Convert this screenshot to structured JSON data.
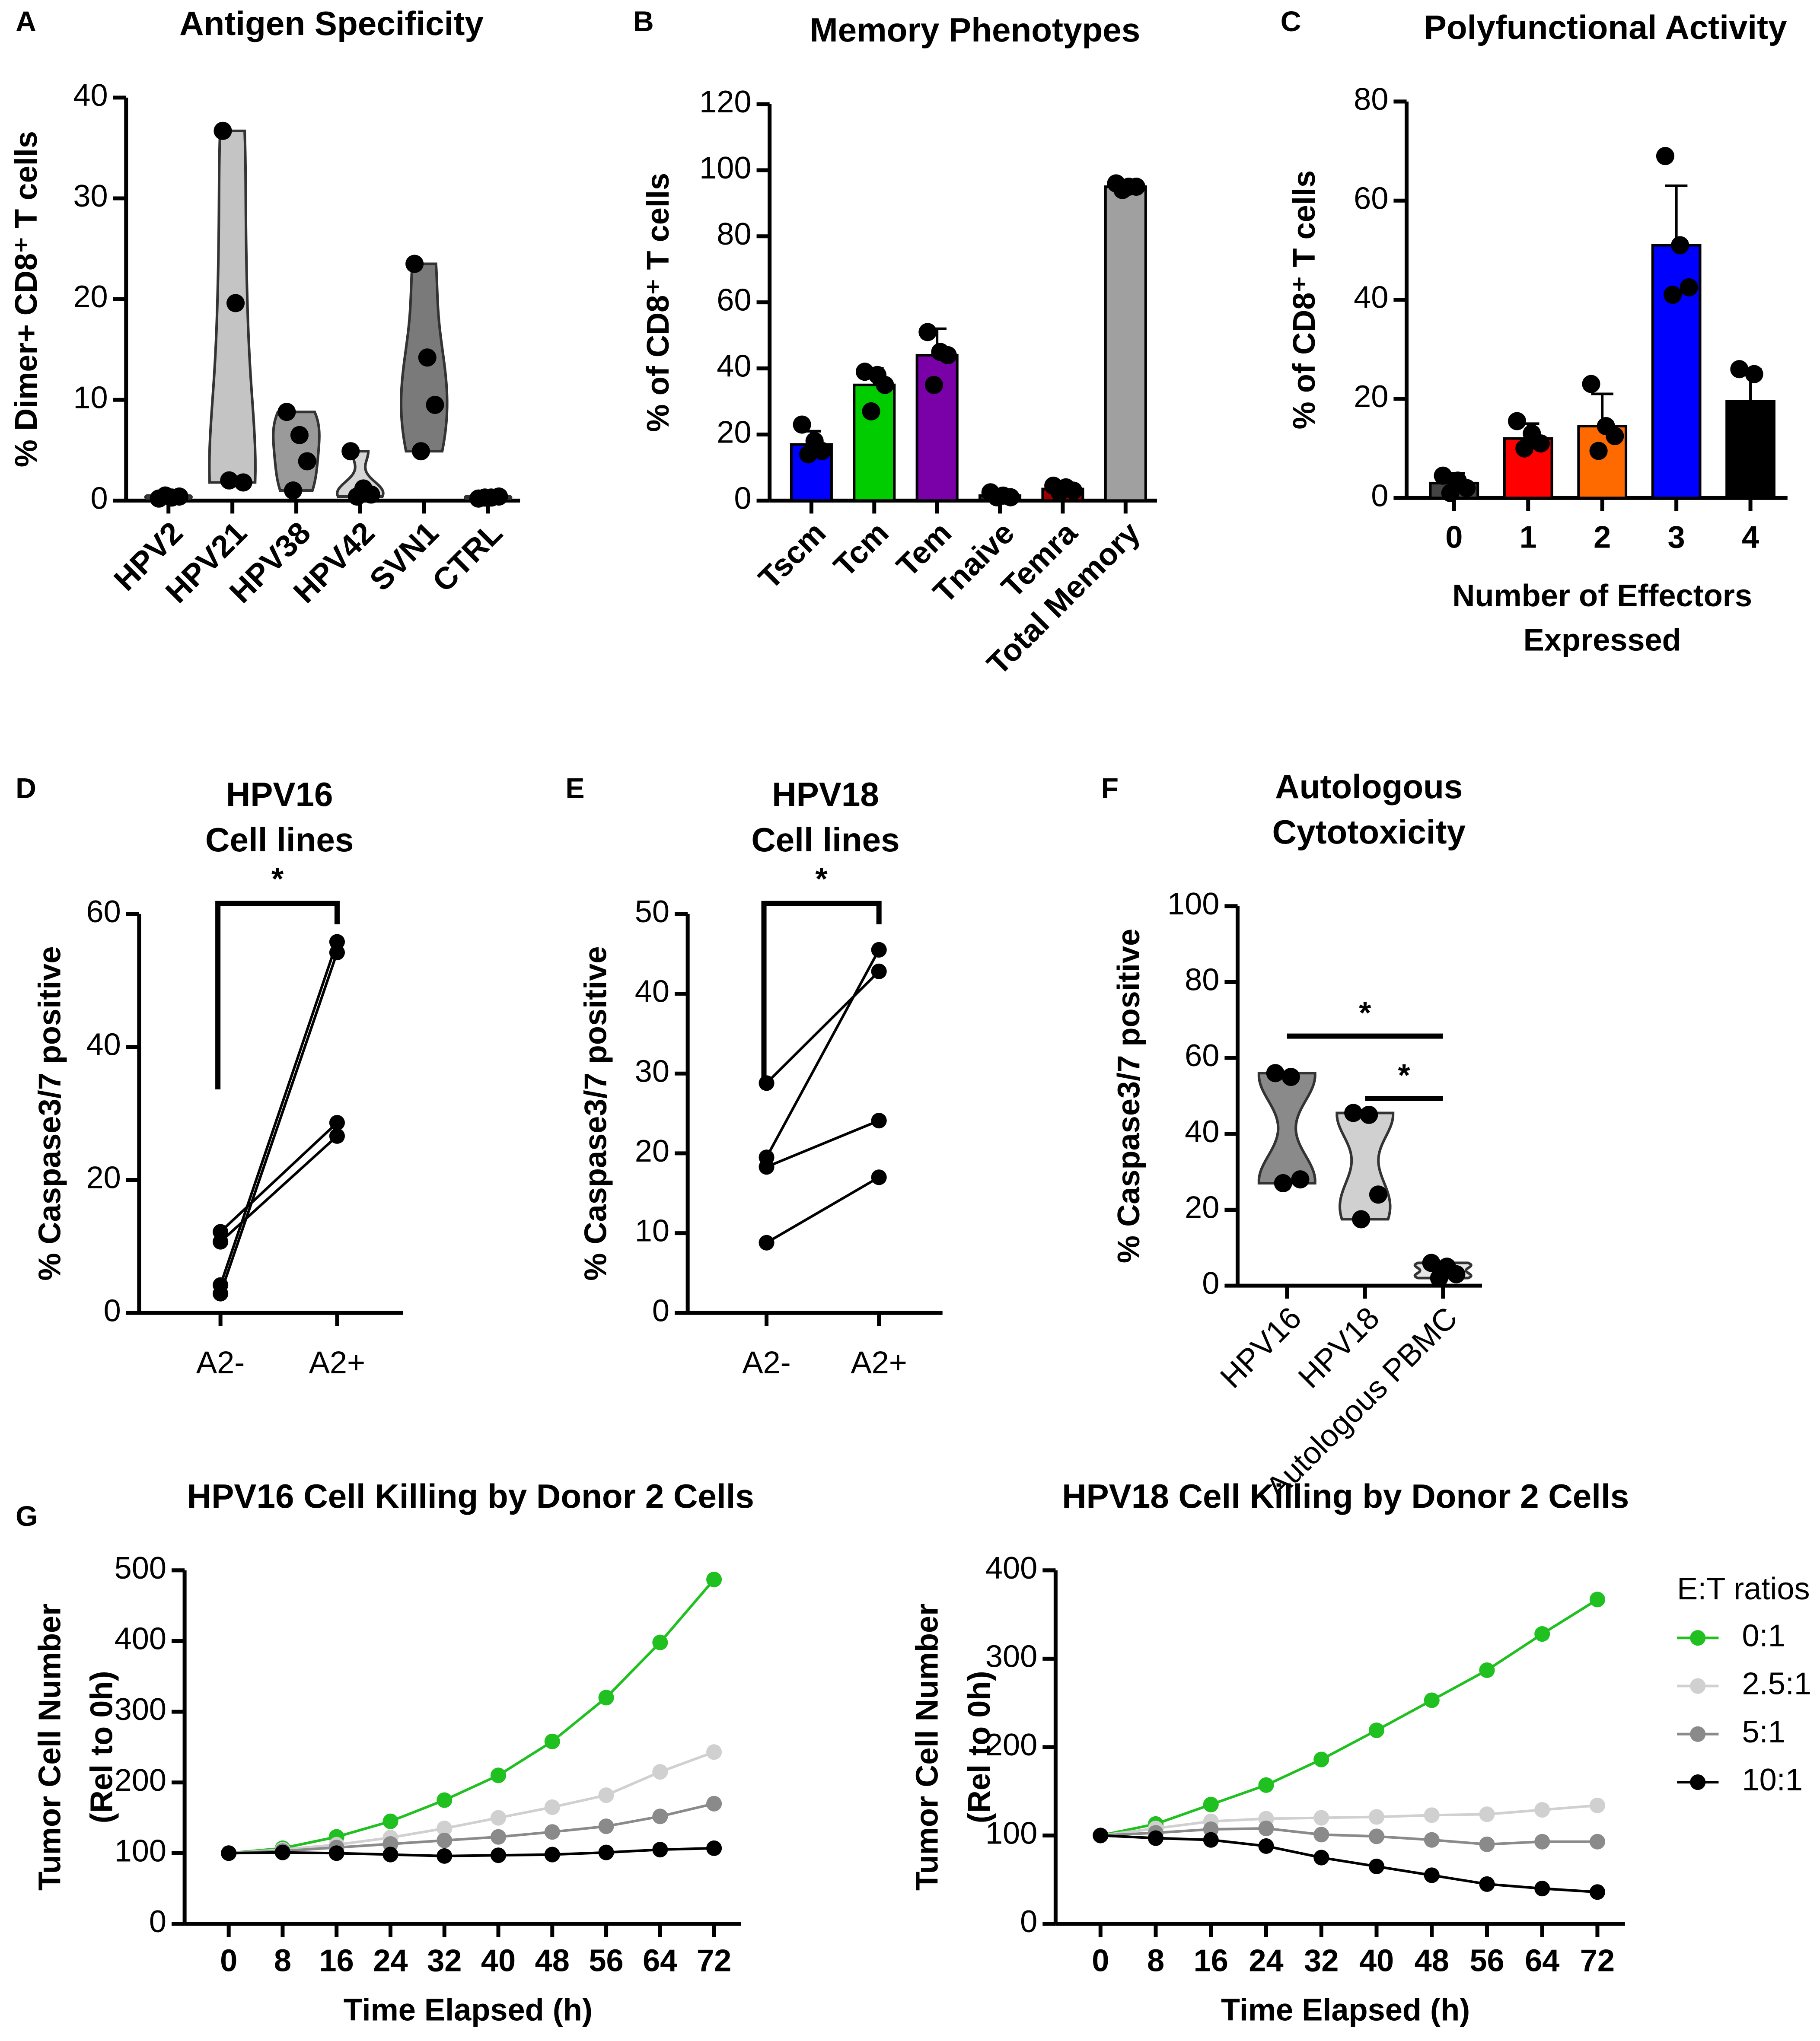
{
  "chart_data": [
    {
      "type": "violin",
      "panel": "A",
      "title": [
        "Antigen Specificity"
      ],
      "ylabel": [
        "% Dimer+ CD8⁺ T cells"
      ],
      "categories": [
        "HPV2",
        "HPV21",
        "HPV38",
        "HPV42",
        "SVN1",
        "CTRL"
      ],
      "colors": [
        "#8c8c8c",
        "#c4c4c4",
        "#9a9a9a",
        "#d6d6d6",
        "#7a7a7a",
        "#9a9a9a"
      ],
      "points": [
        [
          0.2,
          0.3,
          0.4,
          0.5
        ],
        [
          36.7,
          19.6,
          1.8,
          2.0
        ],
        [
          8.8,
          6.5,
          3.9,
          1.0
        ],
        [
          4.9,
          1.2,
          0.6,
          0.4
        ],
        [
          23.5,
          14.2,
          9.5,
          4.9
        ],
        [
          0.2,
          0.3,
          0.4,
          0.3
        ]
      ],
      "ylim": [
        0,
        40
      ],
      "yticks": [
        0,
        10,
        20,
        30,
        40
      ]
    },
    {
      "type": "bar",
      "panel": "B",
      "title": [
        "Memory Phenotypes"
      ],
      "ylabel": [
        "% of CD8⁺ T cells"
      ],
      "categories": [
        "Tscm",
        "Tcm",
        "Tem",
        "Tnaive",
        "Temra",
        "Total Memory"
      ],
      "values": [
        17,
        35,
        44,
        1.5,
        3.5,
        95
      ],
      "errors": [
        4,
        5,
        8,
        0.5,
        1,
        1
      ],
      "colors": [
        "#0000ff",
        "#00cc00",
        "#7a00a8",
        "#222222",
        "#a00000",
        "#a0a0a0"
      ],
      "points": [
        [
          23,
          18,
          15,
          14
        ],
        [
          39,
          38,
          35,
          27
        ],
        [
          51,
          45,
          44,
          35
        ],
        [
          2.5,
          1.5,
          1,
          1
        ],
        [
          4.5,
          4,
          3,
          2.5
        ],
        [
          96,
          95,
          95,
          94
        ]
      ],
      "ylim": [
        0,
        120
      ],
      "yticks": [
        0,
        20,
        40,
        60,
        80,
        100,
        120
      ]
    },
    {
      "type": "bar",
      "panel": "C",
      "title": [
        "Polyfunctional Activity"
      ],
      "ylabel": [
        "% of CD8⁺ T cells"
      ],
      "xlabel": [
        "Number of Effectors",
        "Expressed"
      ],
      "categories": [
        "0",
        "1",
        "2",
        "3",
        "4"
      ],
      "values": [
        3,
        12,
        14.5,
        51,
        19.5
      ],
      "errors": [
        2,
        3,
        6.5,
        12,
        6.5
      ],
      "colors": [
        "#444444",
        "#ff0000",
        "#ff6a00",
        "#0000ff",
        "#000000"
      ],
      "points": [
        [
          4.5,
          3.5,
          2,
          1
        ],
        [
          15.5,
          13,
          11,
          10
        ],
        [
          23,
          14.5,
          12.5,
          9.5
        ],
        [
          69,
          51,
          42.5,
          41
        ],
        [
          26,
          25,
          16,
          11
        ]
      ],
      "ylim": [
        0,
        80
      ],
      "yticks": [
        0,
        20,
        40,
        60,
        80
      ]
    },
    {
      "type": "paired",
      "panel": "D",
      "title": [
        "HPV16",
        "Cell lines"
      ],
      "ylabel": [
        "% Caspase3/7 positive"
      ],
      "categories": [
        "A2-",
        "A2+"
      ],
      "color": "#000000",
      "series": [
        {
          "values": [
            12.2,
            28.6
          ]
        },
        {
          "values": [
            10.7,
            26.6
          ]
        },
        {
          "values": [
            4.2,
            55.8
          ]
        },
        {
          "values": [
            2.9,
            54.2
          ]
        }
      ],
      "annotations": [
        "*"
      ],
      "ylim": [
        0,
        60
      ],
      "yticks": [
        0,
        20,
        40,
        60
      ]
    },
    {
      "type": "paired",
      "panel": "E",
      "title": [
        "HPV18",
        "Cell lines"
      ],
      "ylabel": [
        "% Caspase3/7 positive"
      ],
      "categories": [
        "A2-",
        "A2+"
      ],
      "color": "#000000",
      "series": [
        {
          "values": [
            28.8,
            42.8
          ]
        },
        {
          "values": [
            19.5,
            45.5
          ]
        },
        {
          "values": [
            18.3,
            24.1
          ]
        },
        {
          "values": [
            8.8,
            17.0
          ]
        }
      ],
      "annotations": [
        "*"
      ],
      "ylim": [
        0,
        50
      ],
      "yticks": [
        0,
        10,
        20,
        30,
        40,
        50
      ]
    },
    {
      "type": "violin",
      "panel": "F",
      "title": [
        "Autologous",
        "Cytotoxicity"
      ],
      "ylabel": [
        "% Caspase3/7 positive"
      ],
      "categories": [
        "HPV16",
        "HPV18",
        "Autologous PBMC"
      ],
      "colors": [
        "#8a8a8a",
        "#d0d0d0",
        "#e6e6e6"
      ],
      "points": [
        [
          56,
          55,
          28,
          27
        ],
        [
          45.5,
          45,
          24,
          17.5
        ],
        [
          6,
          5,
          3,
          2
        ]
      ],
      "annotations": [
        "*",
        "*"
      ],
      "ylim": [
        0,
        100
      ],
      "yticks": [
        0,
        20,
        40,
        60,
        80,
        100
      ]
    },
    {
      "type": "line",
      "panel": "G",
      "title": [
        "HPV16 Cell Killing by Donor 2 Cells"
      ],
      "ylabel": [
        "Tumor Cell Number",
        "(Rel to 0h)"
      ],
      "xlabel": [
        "Time Elapsed (h)"
      ],
      "x": [
        0,
        8,
        16,
        24,
        32,
        40,
        48,
        56,
        64,
        72
      ],
      "series": [
        {
          "color": "#1fc01f",
          "values": [
            100,
            107,
            123,
            145,
            175,
            210,
            258,
            320,
            398,
            487
          ]
        },
        {
          "color": "#d0d0d0",
          "values": [
            100,
            105,
            112,
            122,
            135,
            150,
            165,
            182,
            215,
            243
          ]
        },
        {
          "color": "#8a8a8a",
          "values": [
            100,
            103,
            108,
            113,
            118,
            123,
            130,
            138,
            152,
            170
          ]
        },
        {
          "color": "#000000",
          "values": [
            100,
            101,
            100,
            98,
            96,
            97,
            98,
            101,
            105,
            107
          ]
        }
      ],
      "xlim": [
        -5,
        76
      ],
      "xticks": [
        0,
        8,
        16,
        24,
        32,
        40,
        48,
        56,
        64,
        72
      ],
      "ylim": [
        0,
        500
      ],
      "yticks": [
        0,
        100,
        200,
        300,
        400,
        500
      ]
    },
    {
      "type": "line",
      "title": [
        "HPV18 Cell Killing by Donor 2  Cells"
      ],
      "ylabel": [
        "Tumor Cell Number",
        "(Rel to 0h)"
      ],
      "xlabel": [
        "Time Elapsed (h)"
      ],
      "x": [
        0,
        8,
        16,
        24,
        32,
        40,
        48,
        56,
        64,
        72
      ],
      "legend_title": "E:T ratios",
      "legend": "right",
      "series": [
        {
          "name": "0:1",
          "color": "#1fc01f",
          "values": [
            100,
            113,
            135,
            157,
            186,
            219,
            253,
            287,
            328,
            367
          ]
        },
        {
          "name": "2.5:1",
          "color": "#d0d0d0",
          "values": [
            100,
            108,
            116,
            119,
            120,
            121,
            123,
            124,
            129,
            134
          ]
        },
        {
          "name": "5:1",
          "color": "#8a8a8a",
          "values": [
            100,
            103,
            107,
            108,
            101,
            99,
            95,
            90,
            93,
            93
          ]
        },
        {
          "name": "10:1",
          "color": "#000000",
          "values": [
            100,
            97,
            95,
            88,
            75,
            65,
            55,
            45,
            40,
            36
          ]
        }
      ],
      "xlim": [
        -5,
        76
      ],
      "xticks": [
        0,
        8,
        16,
        24,
        32,
        40,
        48,
        56,
        64,
        72
      ],
      "ylim": [
        0,
        400
      ],
      "yticks": [
        0,
        100,
        200,
        300,
        400
      ]
    }
  ]
}
